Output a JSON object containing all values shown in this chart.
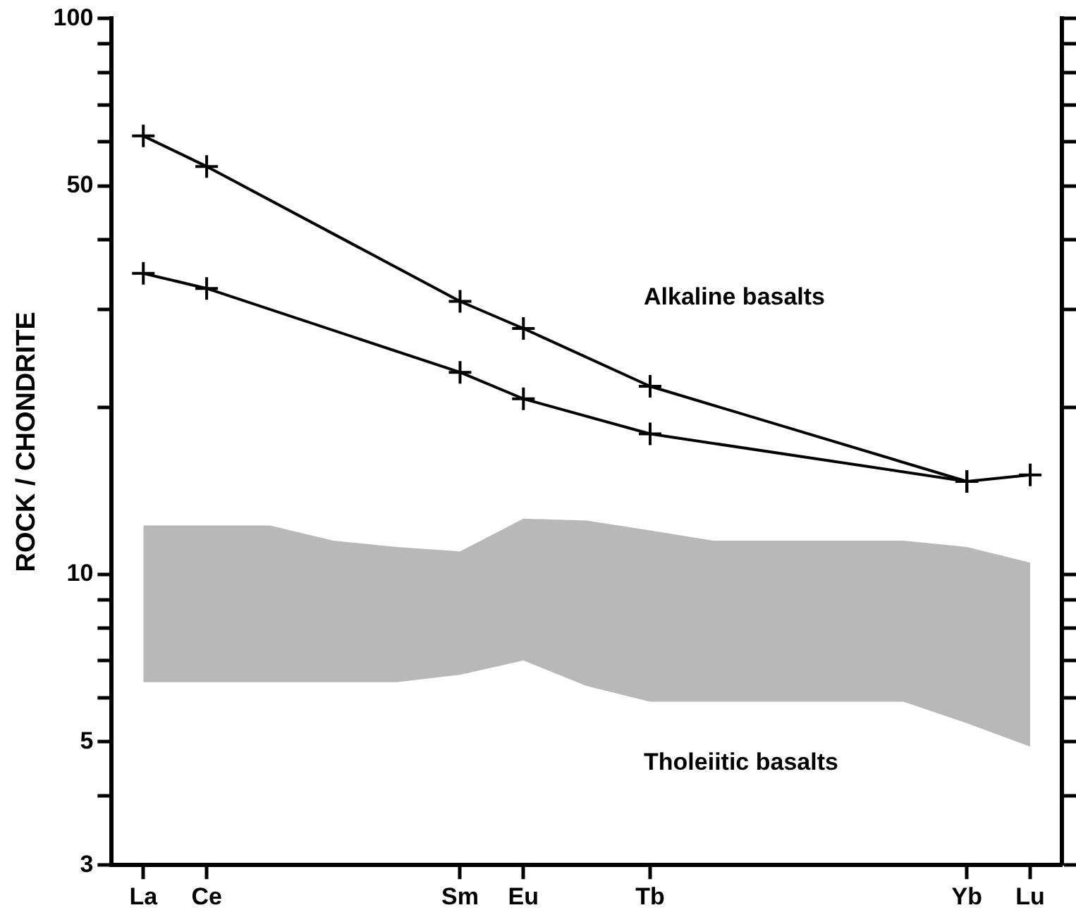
{
  "chart_data": {
    "type": "line",
    "ylabel": "ROCK / CHONDRITE",
    "categories": [
      "La",
      "Ce",
      null,
      null,
      null,
      "Sm",
      "Eu",
      null,
      "Tb",
      null,
      null,
      null,
      null,
      "Yb",
      "Lu"
    ],
    "log": "y",
    "ylim": [
      3,
      100
    ],
    "yticks": [
      3,
      {
        "value": 4,
        "label": null
      },
      5,
      {
        "value": 6,
        "label": null
      },
      {
        "value": 7,
        "label": null
      },
      {
        "value": 8,
        "label": null
      },
      {
        "value": 9,
        "label": null
      },
      10,
      {
        "value": 20,
        "label": null
      },
      {
        "value": 30,
        "label": null
      },
      {
        "value": 40,
        "label": null
      },
      50,
      {
        "value": 60,
        "label": null
      },
      {
        "value": 70,
        "label": null
      },
      {
        "value": 80,
        "label": null
      },
      {
        "value": 90,
        "label": null
      },
      100
    ],
    "marker": "cross",
    "grid": false,
    "legend": false,
    "series": [
      {
        "type": "line",
        "color": "#000000",
        "values": [
          61.5,
          54.2,
          null,
          null,
          null,
          31.0,
          27.7,
          null,
          21.8,
          null,
          null,
          null,
          null,
          14.7,
          15.1
        ]
      },
      {
        "type": "line",
        "color": "#000000",
        "values": [
          34.8,
          32.7,
          null,
          null,
          null,
          23.1,
          20.7,
          null,
          17.9,
          null,
          null,
          null,
          null,
          14.7,
          null
        ]
      },
      {
        "type": "area",
        "color": "#b8b8b8",
        "values": [
          null,
          null,
          null,
          null,
          null,
          null,
          null,
          null,
          null,
          null,
          null,
          null,
          null,
          null,
          null
        ],
        "upper": [
          12.25,
          12.25,
          12.25,
          11.5,
          11.2,
          11.0,
          12.6,
          12.5,
          12.0,
          11.5,
          11.5,
          11.5,
          11.5,
          11.2,
          10.5
        ],
        "lower": [
          6.4,
          6.4,
          6.4,
          6.4,
          6.4,
          6.6,
          7.0,
          6.3,
          5.9,
          5.9,
          5.9,
          5.9,
          5.9,
          5.4,
          4.9
        ]
      }
    ],
    "annotations": [
      "Alkaline basalts",
      "Tholeiitic basalts"
    ]
  }
}
